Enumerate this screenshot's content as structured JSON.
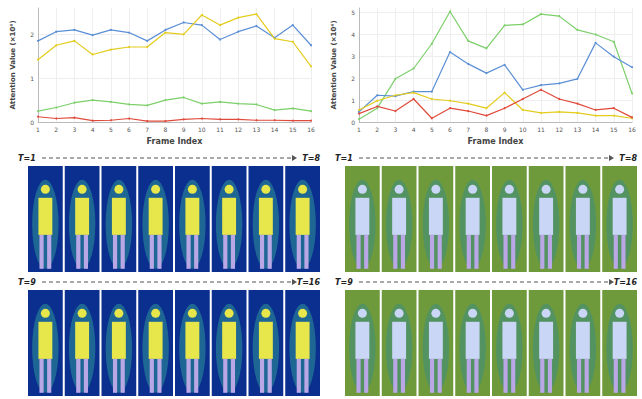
{
  "chart_data": [
    {
      "type": "line",
      "x_label": "Frame Index",
      "y_label": "Attention Value (×10⁴)",
      "categories": [
        "1",
        "2",
        "3",
        "4",
        "5",
        "6",
        "7",
        "8",
        "9",
        "10",
        "11",
        "12",
        "13",
        "14",
        "15",
        "16"
      ],
      "ylim": [
        0,
        2.6
      ],
      "yticks": [
        0,
        1,
        2
      ],
      "grid": true,
      "marker": "circle",
      "series": [
        {
          "color": "#5b8fd6",
          "values": [
            1.85,
            2.06,
            2.1,
            1.98,
            2.1,
            2.04,
            1.85,
            2.1,
            2.27,
            2.21,
            1.88,
            2.06,
            2.19,
            1.92,
            2.21,
            1.75
          ]
        },
        {
          "color": "#e3cc1c",
          "values": [
            1.42,
            1.75,
            1.85,
            1.54,
            1.65,
            1.71,
            1.71,
            2.04,
            2.0,
            2.44,
            2.21,
            2.38,
            2.46,
            1.9,
            1.83,
            1.27
          ]
        },
        {
          "color": "#7ccf6a",
          "values": [
            0.25,
            0.33,
            0.44,
            0.5,
            0.46,
            0.4,
            0.38,
            0.5,
            0.56,
            0.42,
            0.46,
            0.42,
            0.4,
            0.27,
            0.31,
            0.25
          ]
        },
        {
          "color": "#e04a3a",
          "values": [
            0.12,
            0.08,
            0.1,
            0.03,
            0.04,
            0.08,
            0.02,
            0.02,
            0.06,
            0.08,
            0.06,
            0.06,
            0.04,
            0.04,
            0.03,
            0.03
          ]
        }
      ]
    },
    {
      "type": "line",
      "x_label": "Frame Index",
      "y_label": "Attention Value (×10⁴)",
      "categories": [
        "1",
        "2",
        "3",
        "4",
        "5",
        "6",
        "7",
        "8",
        "9",
        "10",
        "11",
        "12",
        "13",
        "14",
        "15",
        "16"
      ],
      "ylim": [
        0,
        5.2
      ],
      "yticks": [
        0,
        1,
        2,
        3,
        4,
        5
      ],
      "grid": true,
      "marker": "circle",
      "series": [
        {
          "color": "#7ccf6a",
          "values": [
            0.13,
            0.63,
            1.97,
            2.44,
            3.57,
            5.04,
            3.7,
            3.36,
            4.41,
            4.45,
            4.92,
            4.83,
            4.2,
            3.99,
            3.66,
            1.3
          ]
        },
        {
          "color": "#5b8fd6",
          "values": [
            0.46,
            1.22,
            1.18,
            1.39,
            1.39,
            3.19,
            2.65,
            2.23,
            2.61,
            1.47,
            1.68,
            1.76,
            1.97,
            3.61,
            2.98,
            2.5
          ]
        },
        {
          "color": "#e3cc1c",
          "values": [
            0.55,
            0.97,
            1.22,
            1.34,
            1.05,
            0.97,
            0.84,
            0.63,
            1.34,
            0.55,
            0.42,
            0.46,
            0.42,
            0.29,
            0.29,
            0.17
          ]
        },
        {
          "color": "#e04a3a",
          "values": [
            0.38,
            0.71,
            0.5,
            1.05,
            0.17,
            0.63,
            0.5,
            0.29,
            0.63,
            1.05,
            1.47,
            1.05,
            0.84,
            0.55,
            0.63,
            0.21
          ]
        }
      ]
    }
  ],
  "frame_panels": [
    {
      "rows": [
        {
          "start": "T=1",
          "end": "T=8"
        },
        {
          "start": "T=9",
          "end": "T=16"
        }
      ]
    },
    {
      "rows": [
        {
          "start": "T=1",
          "end": "T=8"
        },
        {
          "start": "T=9",
          "end": "T=16"
        }
      ]
    }
  ]
}
